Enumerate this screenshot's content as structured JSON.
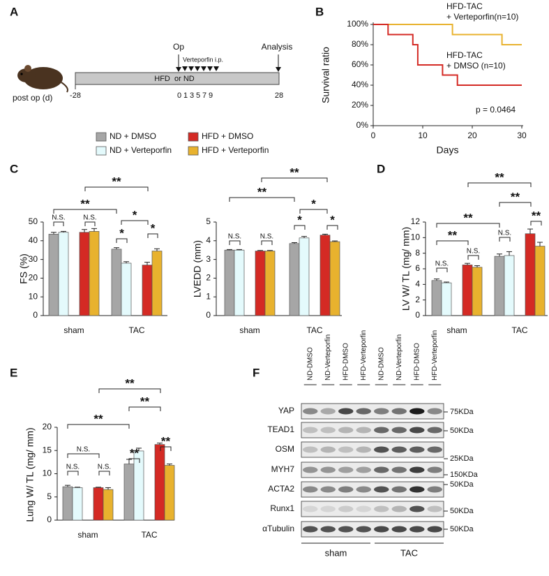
{
  "panel_labels": [
    "A",
    "B",
    "C",
    "D",
    "E",
    "F"
  ],
  "timeline": {
    "op": "Op",
    "analysis": "Analysis",
    "treatment": "Verteporfin i.p.",
    "bar_label": "HFD  or ND",
    "axis_label": "post op (d)",
    "ticks": [
      -28,
      0,
      1,
      3,
      5,
      7,
      9,
      28
    ]
  },
  "legend": [
    {
      "name": "ND + DMSO",
      "color": "#a6a6a6"
    },
    {
      "name": "ND + Verteporfin",
      "color": "#e4fafc"
    },
    {
      "name": "HFD + DMSO",
      "color": "#d42a24"
    },
    {
      "name": "HFD + Verteporfin",
      "color": "#e8b22e"
    }
  ],
  "chart_data": [
    {
      "type": "line",
      "step": true,
      "x_label": "Days",
      "y_label": "Survival ratio",
      "annotation": "p = 0.0464",
      "x": [
        0,
        3,
        8,
        9,
        14,
        16,
        17,
        26,
        30
      ],
      "series": [
        {
          "name": "HFD-TAC\n+ Verteporfin(n=10)",
          "color": "#e8b22e",
          "values": [
            100,
            100,
            100,
            100,
            100,
            90,
            90,
            80,
            80
          ]
        },
        {
          "name": "HFD-TAC\n+ DMSO  (n=10)",
          "color": "#d42a24",
          "values": [
            100,
            90,
            80,
            60,
            50,
            50,
            40,
            40,
            40
          ]
        }
      ],
      "xlim": [
        0,
        30
      ],
      "xticks": [
        0,
        10,
        20,
        30
      ],
      "ylim": [
        0,
        100
      ],
      "yticks": [
        {
          "value": 0,
          "label": "0%"
        },
        {
          "value": 20,
          "label": "20%"
        },
        {
          "value": 40,
          "label": "40%"
        },
        {
          "value": 60,
          "label": "60%"
        },
        {
          "value": 80,
          "label": "80%"
        },
        {
          "value": 100,
          "label": "100%"
        }
      ]
    },
    {
      "type": "bar",
      "y_label": "FS (%)",
      "categories": [
        "sham",
        "TAC"
      ],
      "series": [
        {
          "values": [
            43.5,
            35.5
          ],
          "errors": [
            1,
            0.8
          ]
        },
        {
          "values": [
            44.5,
            28
          ],
          "errors": [
            0.5,
            0.8
          ]
        },
        {
          "values": [
            44.5,
            27
          ],
          "errors": [
            1.5,
            1.5
          ]
        },
        {
          "values": [
            45,
            34.5
          ],
          "errors": [
            1.5,
            1.2
          ]
        }
      ],
      "annotations": [
        "N.S.",
        "N.S.",
        "*",
        "*",
        "*",
        "**",
        "**"
      ],
      "ylim": [
        0,
        50
      ],
      "yticks": [
        0,
        10,
        20,
        30,
        40,
        50
      ]
    },
    {
      "type": "bar",
      "y_label": "LVEDD (mm)",
      "categories": [
        "sham",
        "TAC"
      ],
      "series": [
        {
          "values": [
            3.5,
            3.85
          ],
          "errors": [
            0.03,
            0.05
          ]
        },
        {
          "values": [
            3.5,
            4.15
          ],
          "errors": [
            0.03,
            0.08
          ]
        },
        {
          "values": [
            3.45,
            4.3
          ],
          "errors": [
            0.03,
            0.05
          ]
        },
        {
          "values": [
            3.45,
            3.95
          ],
          "errors": [
            0.03,
            0.04
          ]
        }
      ],
      "annotations": [
        "N.S.",
        "N.S.",
        "*",
        "*",
        "*",
        "**",
        "**"
      ],
      "ylim": [
        0,
        5
      ],
      "yticks": [
        0,
        1,
        2,
        3,
        4,
        5
      ]
    },
    {
      "type": "bar",
      "y_label": "LV W/ TL (mg/ mm)",
      "categories": [
        "sham",
        "TAC"
      ],
      "series": [
        {
          "values": [
            4.5,
            7.6
          ],
          "errors": [
            0.2,
            0.3
          ]
        },
        {
          "values": [
            4.2,
            7.7
          ],
          "errors": [
            0.1,
            0.5
          ]
        },
        {
          "values": [
            6.5,
            10.5
          ],
          "errors": [
            0.2,
            0.6
          ]
        },
        {
          "values": [
            6.2,
            8.9
          ],
          "errors": [
            0.2,
            0.5
          ]
        }
      ],
      "annotations": [
        "N.S.",
        "N.S.",
        "N.S.",
        "**",
        "**",
        "**",
        "**",
        "**"
      ],
      "ylim": [
        0,
        12
      ],
      "yticks": [
        0,
        2,
        4,
        6,
        8,
        10,
        12
      ]
    },
    {
      "type": "bar",
      "y_label": "Lung W/ TL (mg/ mm)",
      "categories": [
        "sham",
        "TAC"
      ],
      "series": [
        {
          "values": [
            7.2,
            12.1
          ],
          "errors": [
            0.3,
            1
          ]
        },
        {
          "values": [
            7,
            14.9
          ],
          "errors": [
            0.1,
            0.6
          ]
        },
        {
          "values": [
            7,
            16.3
          ],
          "errors": [
            0.1,
            0.3
          ]
        },
        {
          "values": [
            6.6,
            11.8
          ],
          "errors": [
            0.4,
            0.3
          ]
        }
      ],
      "annotations": [
        "N.S.",
        "N.S.",
        "N.S.",
        "**",
        "**",
        "**",
        "**",
        "**"
      ],
      "ylim": [
        0,
        20
      ],
      "yticks": [
        0,
        5,
        10,
        15,
        20
      ]
    }
  ],
  "blot": {
    "lanes": [
      "ND-DMSO",
      "ND-Verteporfin",
      "HFD-DMSO",
      "HFD-Verteporfin",
      "ND-DMSO",
      "ND-Verteporfin",
      "HFD-DMSO",
      "HFD-Verteporfin"
    ],
    "rows": [
      "YAP",
      "TEAD1",
      "OSM",
      "MYH7",
      "ACTA2",
      "Runx1",
      "αTubulin"
    ],
    "markers": [
      "75KDa",
      "50KDa",
      "25KDa",
      "150KDa",
      "50KDa",
      "50KDa",
      "50KDa"
    ],
    "groups": [
      "sham",
      "TAC"
    ]
  }
}
